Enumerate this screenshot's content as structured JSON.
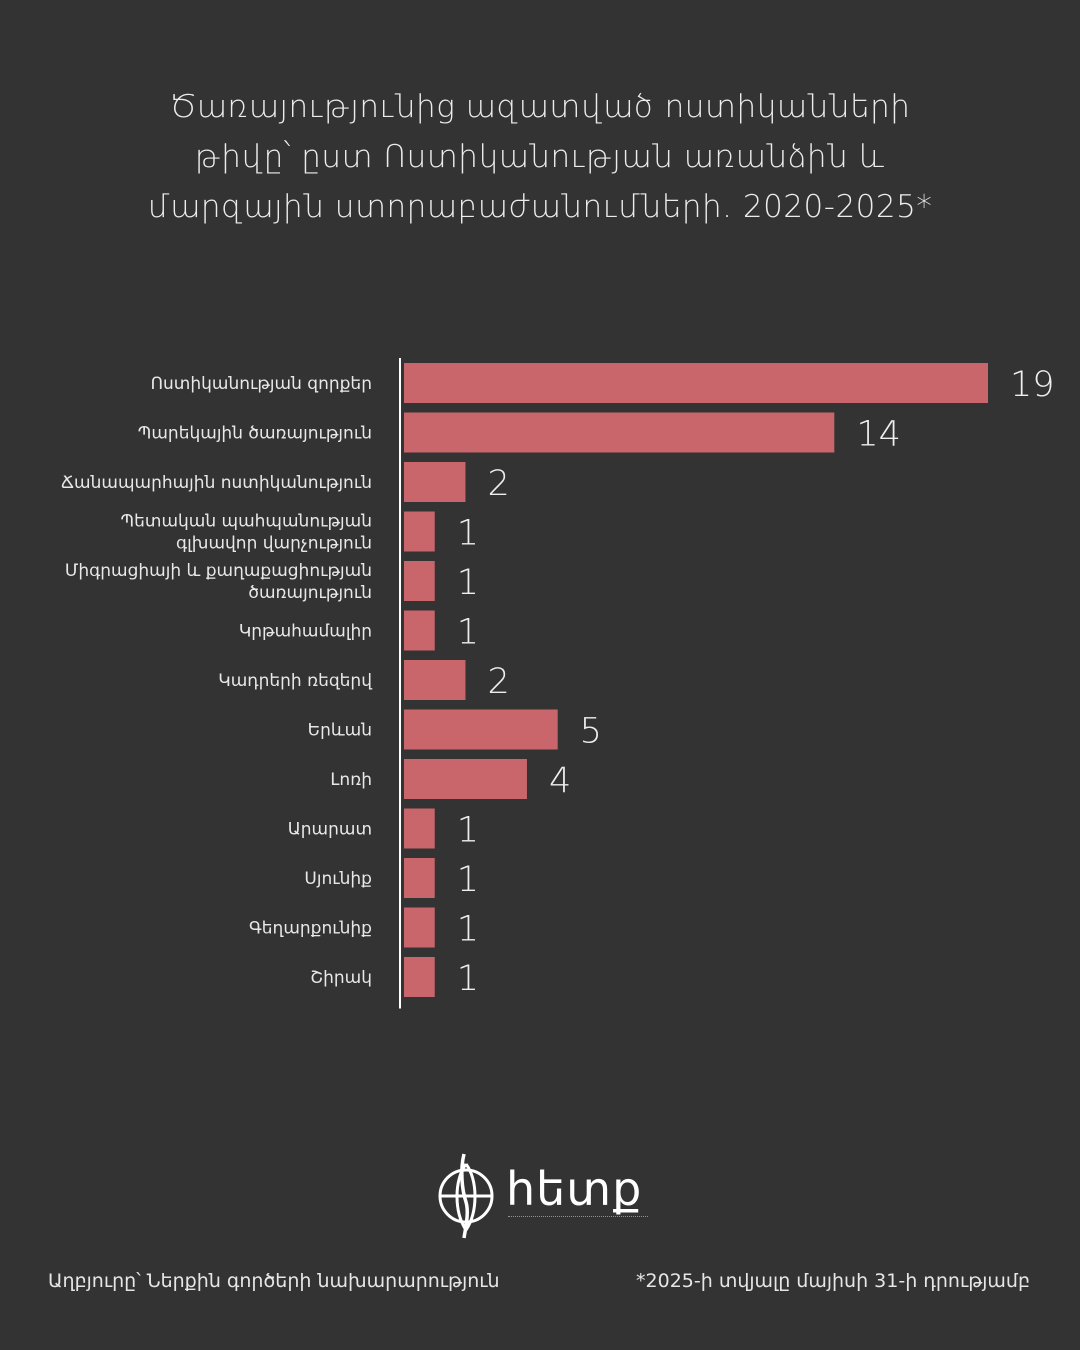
{
  "title_lines": [
    "Ծառայությունից ազատված ոստիկանների",
    "թիվը՝ ըստ Ոստիկանության առանձին և",
    "մարզային ստորաբաժանումների. 2020-2025*"
  ],
  "chart_data": {
    "type": "bar",
    "orientation": "horizontal",
    "categories": [
      "Ոստիկանության զորքեր",
      "Պարեկային ծառայություն",
      "Ճանապարհային ոստիկանություն",
      "Պետական պահպանության գլխավոր վարչություն",
      "Միգրացիայի և քաղաքացիության ծառայություն",
      "Կրթահամալիր",
      "Կադրերի ռեզերվ",
      "Երևան",
      "Լոռի",
      "Արարատ",
      "Սյունիք",
      "Գեղարքունիք",
      "Շիրակ"
    ],
    "category_lines": [
      [
        "Ոստիկանության զորքեր"
      ],
      [
        "Պարեկային ծառայություն"
      ],
      [
        "Ճանապարհային ոստիկանություն"
      ],
      [
        "Պետական պահպանության",
        "գլխավոր վարչություն"
      ],
      [
        "Միգրացիայի և քաղաքացիության",
        "ծառայություն"
      ],
      [
        "Կրթահամալիր"
      ],
      [
        "Կադրերի ռեզերվ"
      ],
      [
        "Երևան"
      ],
      [
        "Լոռի"
      ],
      [
        "Արարատ"
      ],
      [
        "Սյունիք"
      ],
      [
        "Գեղարքունիք"
      ],
      [
        "Շիրակ"
      ]
    ],
    "values": [
      19,
      14,
      2,
      1,
      1,
      1,
      2,
      5,
      4,
      1,
      1,
      1,
      1
    ],
    "xlim": [
      0,
      19
    ],
    "bar_color": "#c9666b",
    "axis_color": "#ffffff",
    "grid": false,
    "legend": "none",
    "data_labels": true
  },
  "logo": {
    "text": "հետք"
  },
  "footer": {
    "source": "Աղբյուրը՝ Ներքին գործերի նախարարություն",
    "note": "*2025-ի տվյալը մայիսի 31-ի դրությամբ"
  },
  "colors": {
    "background": "#333333",
    "text": "#e8e8e8",
    "bar": "#c9666b"
  }
}
